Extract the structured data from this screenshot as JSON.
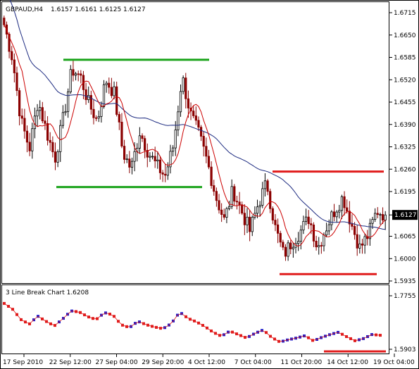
{
  "main_panel": {
    "symbol": "GBPAUD,H4",
    "ohlc": "1.6157 1.6161 1.6125 1.6127",
    "price_ticks": [
      "1.6715",
      "1.6650",
      "1.6585",
      "1.6520",
      "1.6455",
      "1.6390",
      "1.6325",
      "1.6260",
      "1.6195",
      "1.6127",
      "1.6065",
      "1.6000",
      "1.5935"
    ],
    "current_price_label": "1.6127",
    "colors": {
      "bull": "#000000",
      "bear": "#8b0000",
      "ma_fast": "#cc0000",
      "ma_slow": "#1c2a80",
      "support": "#1aa31a",
      "resistance": "#e01c1c"
    }
  },
  "sub_panel": {
    "title": "3 Line Break Chart 1.6208",
    "price_ticks": [
      "1.7755",
      "1.5903"
    ],
    "colors": {
      "up": "#1a1acc",
      "down": "#e01c1c",
      "line": "#e01c1c"
    }
  },
  "time_axis": {
    "labels": [
      "17 Sep 2010",
      "22 Sep 12:00",
      "27 Sep 04:00",
      "29 Sep 20:00",
      "4 Oct 12:00",
      "7 Oct 04:00",
      "11 Oct 20:00",
      "14 Oct 12:00",
      "19 Oct 04:00"
    ]
  },
  "chart_data": [
    {
      "type": "candlestick",
      "title": "GBPAUD,H4",
      "ylim": [
        1.5935,
        1.6715
      ],
      "x_labels": [
        "17 Sep 2010",
        "22 Sep 12:00",
        "27 Sep 04:00",
        "29 Sep 20:00",
        "4 Oct 12:00",
        "7 Oct 04:00",
        "11 Oct 20:00",
        "14 Oct 12:00",
        "19 Oct 04:00"
      ],
      "close_path": [
        1.668,
        1.658,
        1.64,
        1.632,
        1.646,
        1.637,
        1.629,
        1.641,
        1.655,
        1.653,
        1.645,
        1.64,
        1.652,
        1.648,
        1.631,
        1.626,
        1.637,
        1.631,
        1.627,
        1.624,
        1.633,
        1.653,
        1.642,
        1.636,
        1.628,
        1.618,
        1.611,
        1.62,
        1.614,
        1.608,
        1.616,
        1.622,
        1.609,
        1.601,
        1.605,
        1.608,
        1.612,
        1.603,
        1.609,
        1.614,
        1.618,
        1.61,
        1.603,
        1.607,
        1.614,
        1.6127
      ],
      "horizontal_levels": [
        {
          "price": 1.6578,
          "color": "green"
        },
        {
          "price": 1.6208,
          "color": "green"
        },
        {
          "price": 1.6253,
          "color": "red"
        },
        {
          "price": 1.5955,
          "color": "red"
        }
      ]
    },
    {
      "type": "line",
      "title": "3 Line Break Chart 1.6208",
      "ylim": [
        1.5903,
        1.7755
      ]
    }
  ]
}
